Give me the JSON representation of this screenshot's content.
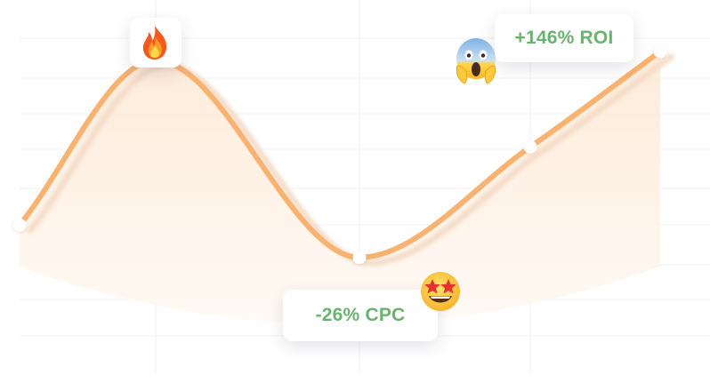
{
  "colors": {
    "line": "#f9b26f",
    "line_shadow": "#f4dcc8",
    "fill_top": "#fdebd9",
    "fill_bottom": "#fffaf5",
    "label_green": "#6ab36e",
    "marker_fill": "#ffffff",
    "grid": "#f1f1f4"
  },
  "chart_data": {
    "type": "area",
    "smooth": true,
    "grid": true,
    "x": [
      0,
      1,
      2,
      3,
      4
    ],
    "values": [
      20,
      96,
      5,
      56,
      100
    ],
    "ylim": [
      0,
      100
    ],
    "title": "",
    "xlabel": "",
    "ylabel": ""
  },
  "annotations": {
    "roi": {
      "text": "+146% ROI",
      "icon": "face-screaming-in-fear-icon"
    },
    "cpc": {
      "text": "-26% CPC",
      "icon": "star-struck-face-icon"
    },
    "peak": {
      "icon": "fire-icon"
    }
  }
}
